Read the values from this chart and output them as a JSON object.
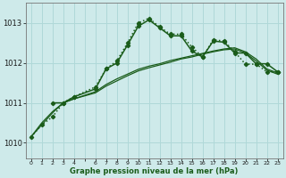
{
  "title": "Graphe pression niveau de la mer (hPa)",
  "background_color": "#ceeaea",
  "grid_color": "#b0d8d8",
  "line_color": "#1a5c1a",
  "yticks": [
    1010,
    1011,
    1012,
    1013
  ],
  "ylim": [
    1009.6,
    1013.5
  ],
  "xlim": [
    -0.5,
    23.5
  ],
  "x_labels": [
    "0",
    "1",
    "2",
    "3",
    "4",
    "",
    "6",
    "7",
    "8",
    "9",
    "10",
    "11",
    "12",
    "13",
    "14",
    "15",
    "16",
    "17",
    "18",
    "19",
    "20",
    "21",
    "22",
    "23"
  ],
  "series": {
    "dotted": {
      "x": [
        0,
        1,
        2,
        3,
        4,
        6,
        7,
        8,
        9,
        10,
        11,
        12,
        13,
        14,
        15,
        16,
        17,
        18,
        19,
        20,
        21,
        22,
        23
      ],
      "y": [
        1010.15,
        1010.45,
        1010.65,
        1011.0,
        1011.15,
        1011.4,
        1011.85,
        1012.05,
        1012.5,
        1013.0,
        1013.12,
        1012.9,
        1012.72,
        1012.72,
        1012.4,
        1012.15,
        1012.58,
        1012.55,
        1012.28,
        1011.97,
        1011.97,
        1011.78,
        1011.78
      ],
      "linestyle": "dotted",
      "marker": "D",
      "markersize": 2.2,
      "linewidth": 1.1
    },
    "solid_marked": {
      "x": [
        2,
        3,
        4,
        6,
        7,
        8,
        9,
        10,
        11,
        12,
        13,
        14,
        15,
        16,
        17,
        18,
        19,
        20,
        21,
        22,
        23
      ],
      "y": [
        1011.0,
        1011.0,
        1011.15,
        1011.35,
        1011.85,
        1012.0,
        1012.45,
        1012.92,
        1013.08,
        1012.88,
        1012.68,
        1012.68,
        1012.3,
        1012.15,
        1012.55,
        1012.52,
        1012.25,
        1012.25,
        1011.98,
        1011.98,
        1011.78
      ],
      "linestyle": "solid",
      "marker": "D",
      "markersize": 2.2,
      "linewidth": 1.1
    },
    "flat1": {
      "x": [
        0,
        1,
        2,
        3,
        4,
        6,
        7,
        8,
        9,
        10,
        11,
        12,
        13,
        14,
        15,
        16,
        17,
        18,
        19,
        20,
        21,
        22,
        23
      ],
      "y": [
        1010.15,
        1010.45,
        1010.75,
        1011.0,
        1011.1,
        1011.25,
        1011.42,
        1011.55,
        1011.68,
        1011.8,
        1011.88,
        1011.95,
        1012.02,
        1012.1,
        1012.15,
        1012.22,
        1012.28,
        1012.33,
        1012.35,
        1012.25,
        1012.05,
        1011.82,
        1011.72
      ],
      "linestyle": "solid",
      "linewidth": 0.9
    },
    "flat2": {
      "x": [
        0,
        1,
        2,
        3,
        4,
        6,
        7,
        8,
        9,
        10,
        11,
        12,
        13,
        14,
        15,
        16,
        17,
        18,
        19,
        20,
        21,
        22,
        23
      ],
      "y": [
        1010.15,
        1010.5,
        1010.78,
        1011.0,
        1011.1,
        1011.28,
        1011.46,
        1011.6,
        1011.72,
        1011.84,
        1011.92,
        1011.98,
        1012.06,
        1012.12,
        1012.18,
        1012.24,
        1012.3,
        1012.35,
        1012.38,
        1012.28,
        1012.1,
        1011.85,
        1011.75
      ],
      "linestyle": "solid",
      "linewidth": 0.9
    }
  }
}
